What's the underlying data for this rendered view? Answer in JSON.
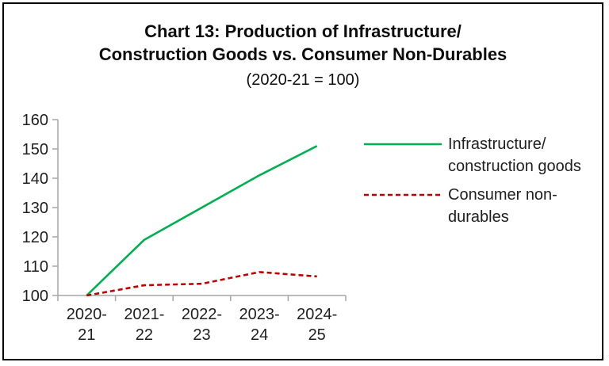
{
  "title": {
    "line1": "Chart 13: Production of Infrastructure/",
    "line2": "Construction Goods vs. Consumer Non-Durables",
    "subtitle": "(2020-21 = 100)"
  },
  "chart_data": {
    "type": "line",
    "title": "Chart 13: Production of Infrastructure/Construction Goods vs. Consumer Non-Durables",
    "subtitle": "(2020-21 = 100)",
    "categories": [
      "2020-21",
      "2021-22",
      "2022-23",
      "2023-24",
      "2024-25"
    ],
    "series": [
      {
        "id": "infrastructure-construction-goods",
        "name": "Infrastructure/construction goods",
        "legend_lines": [
          "Infrastructure/",
          "construction goods"
        ],
        "color": "#00B050",
        "style": "solid",
        "values": [
          100,
          119,
          130,
          141,
          151
        ]
      },
      {
        "id": "consumer-non-durables",
        "name": "Consumer non-durables",
        "legend_lines": [
          "Consumer non-",
          "durables"
        ],
        "color": "#C00000",
        "style": "dashed",
        "values": [
          100,
          103.5,
          104,
          108,
          106.5
        ]
      }
    ],
    "xlabel": "",
    "ylabel": "",
    "ylim": [
      100,
      160
    ],
    "yticks": [
      100,
      110,
      120,
      130,
      140,
      150,
      160
    ],
    "grid": false,
    "legend_position": "right",
    "axis_color": "#A6A6A6",
    "text_color": "#1f1f1f"
  }
}
